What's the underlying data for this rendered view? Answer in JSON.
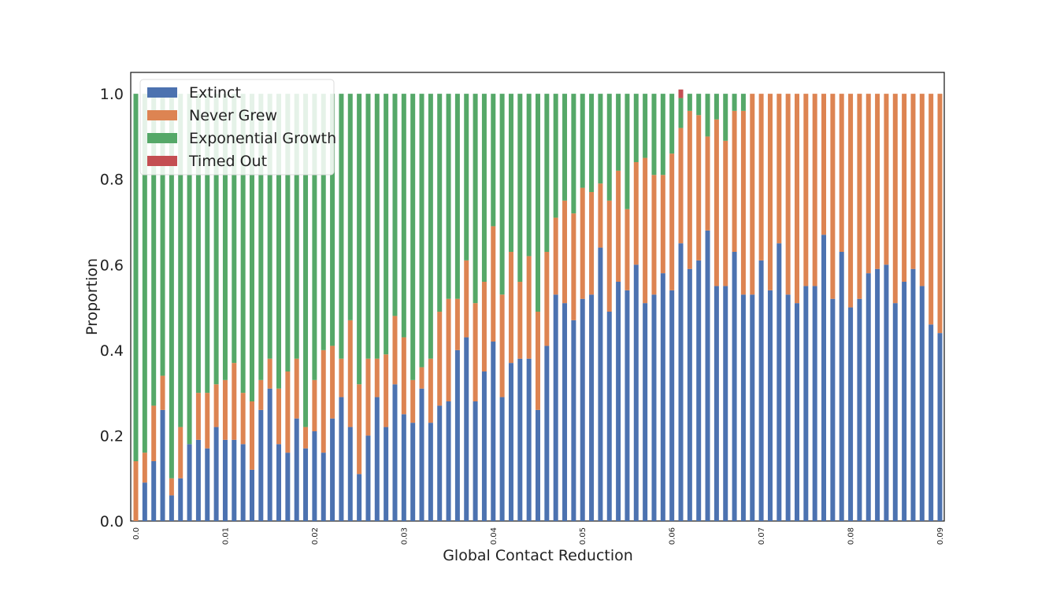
{
  "chart_data": {
    "type": "bar",
    "stacked": true,
    "title": "",
    "xlabel": "Global Contact Reduction",
    "ylabel": "Proportion",
    "ylim": [
      0,
      1.05
    ],
    "xlim": [
      0,
      0.09
    ],
    "grid": false,
    "legend_position": "top-left",
    "y_ticks": [
      "0.0",
      "0.2",
      "0.4",
      "0.6",
      "0.8",
      "1.0"
    ],
    "x_ticks": [
      "0.0",
      "0.01",
      "0.02",
      "0.03",
      "0.04",
      "0.05",
      "0.06",
      "0.07",
      "0.08",
      "0.09"
    ],
    "x_tick_values": [
      0,
      0.01,
      0.02,
      0.03,
      0.04,
      0.05,
      0.06,
      0.07,
      0.08,
      0.09
    ],
    "x": [
      0.0,
      0.001,
      0.002,
      0.003,
      0.004,
      0.005,
      0.006,
      0.007,
      0.008,
      0.009,
      0.01,
      0.011,
      0.012,
      0.013,
      0.014,
      0.015,
      0.016,
      0.017,
      0.018,
      0.019,
      0.02,
      0.021,
      0.022,
      0.023,
      0.024,
      0.025,
      0.026,
      0.027,
      0.028,
      0.029,
      0.03,
      0.031,
      0.032,
      0.033,
      0.034,
      0.035,
      0.036,
      0.037,
      0.038,
      0.039,
      0.04,
      0.041,
      0.042,
      0.043,
      0.044,
      0.045,
      0.046,
      0.047,
      0.048,
      0.049,
      0.05,
      0.051,
      0.052,
      0.053,
      0.054,
      0.055,
      0.056,
      0.057,
      0.058,
      0.059,
      0.06,
      0.061,
      0.062,
      0.063,
      0.064,
      0.065,
      0.066,
      0.067,
      0.068,
      0.069,
      0.07,
      0.071,
      0.072,
      0.073,
      0.074,
      0.075,
      0.076,
      0.077,
      0.078,
      0.079,
      0.08,
      0.081,
      0.082,
      0.083,
      0.084,
      0.085,
      0.086,
      0.087,
      0.088,
      0.089,
      0.09
    ],
    "series": [
      {
        "name": "Extinct",
        "color": "#4c72b0",
        "values": [
          0.0,
          0.09,
          0.14,
          0.26,
          0.06,
          0.1,
          0.18,
          0.19,
          0.17,
          0.22,
          0.19,
          0.19,
          0.18,
          0.12,
          0.26,
          0.31,
          0.18,
          0.16,
          0.24,
          0.17,
          0.21,
          0.16,
          0.24,
          0.29,
          0.22,
          0.11,
          0.2,
          0.29,
          0.22,
          0.32,
          0.25,
          0.23,
          0.31,
          0.23,
          0.27,
          0.28,
          0.4,
          0.43,
          0.28,
          0.35,
          0.42,
          0.29,
          0.37,
          0.38,
          0.38,
          0.26,
          0.41,
          0.53,
          0.51,
          0.47,
          0.52,
          0.53,
          0.64,
          0.49,
          0.56,
          0.54,
          0.6,
          0.51,
          0.53,
          0.58,
          0.54,
          0.65,
          0.59,
          0.61,
          0.68,
          0.55,
          0.55,
          0.63,
          0.53,
          0.53,
          0.61,
          0.54,
          0.65,
          0.53,
          0.51,
          0.55,
          0.55,
          0.67,
          0.52,
          0.63,
          0.5,
          0.52,
          0.58,
          0.59,
          0.6,
          0.51,
          0.56,
          0.59,
          0.55,
          0.46,
          0.44
        ]
      },
      {
        "name": "Never Grew",
        "color": "#dd8452",
        "values": [
          0.14,
          0.07,
          0.13,
          0.08,
          0.04,
          0.12,
          0.0,
          0.11,
          0.13,
          0.1,
          0.14,
          0.18,
          0.12,
          0.16,
          0.07,
          0.07,
          0.13,
          0.19,
          0.14,
          0.05,
          0.12,
          0.24,
          0.17,
          0.09,
          0.25,
          0.21,
          0.18,
          0.09,
          0.17,
          0.16,
          0.18,
          0.1,
          0.05,
          0.15,
          0.22,
          0.24,
          0.12,
          0.18,
          0.23,
          0.21,
          0.27,
          0.24,
          0.26,
          0.18,
          0.24,
          0.23,
          0.22,
          0.18,
          0.24,
          0.25,
          0.26,
          0.24,
          0.15,
          0.26,
          0.26,
          0.19,
          0.24,
          0.34,
          0.28,
          0.23,
          0.32,
          0.27,
          0.37,
          0.34,
          0.22,
          0.39,
          0.34,
          0.33,
          0.43,
          0.47,
          0.39,
          0.46,
          0.35,
          0.47,
          0.49,
          0.45,
          0.45,
          0.33,
          0.48,
          0.37,
          0.5,
          0.48,
          0.42,
          0.41,
          0.4,
          0.49,
          0.44,
          0.41,
          0.45,
          0.54,
          0.56
        ]
      },
      {
        "name": "Exponential Growth",
        "color": "#55a868",
        "values": [
          0.86,
          0.84,
          0.73,
          0.66,
          0.9,
          0.78,
          0.82,
          0.7,
          0.7,
          0.68,
          0.67,
          0.63,
          0.7,
          0.72,
          0.67,
          0.62,
          0.69,
          0.65,
          0.62,
          0.78,
          0.67,
          0.6,
          0.59,
          0.62,
          0.53,
          0.68,
          0.62,
          0.62,
          0.61,
          0.52,
          0.57,
          0.67,
          0.64,
          0.62,
          0.51,
          0.48,
          0.48,
          0.39,
          0.49,
          0.44,
          0.31,
          0.47,
          0.37,
          0.44,
          0.38,
          0.51,
          0.37,
          0.29,
          0.25,
          0.28,
          0.22,
          0.23,
          0.21,
          0.25,
          0.18,
          0.27,
          0.16,
          0.15,
          0.19,
          0.19,
          0.14,
          0.07,
          0.04,
          0.05,
          0.1,
          0.06,
          0.11,
          0.04,
          0.04,
          0.0,
          0.0,
          0.0,
          0.0,
          0.0,
          0.0,
          0.0,
          0.0,
          0.0,
          0.0,
          0.0,
          0.0,
          0.0,
          0.0,
          0.0,
          0.0,
          0.0,
          0.0,
          0.0,
          0.0,
          0.0,
          0.0
        ]
      },
      {
        "name": "Timed Out",
        "color": "#c44e52",
        "values": [
          0,
          0,
          0,
          0,
          0,
          0,
          0,
          0,
          0,
          0,
          0,
          0,
          0,
          0,
          0,
          0,
          0,
          0,
          0,
          0,
          0,
          0,
          0,
          0,
          0,
          0,
          0,
          0,
          0,
          0,
          0,
          0,
          0,
          0,
          0,
          0,
          0,
          0,
          0,
          0,
          0,
          0,
          0,
          0,
          0,
          0,
          0,
          0,
          0,
          0,
          0,
          0,
          0,
          0,
          0,
          0,
          0,
          0,
          0,
          0,
          0,
          0.02,
          0,
          0,
          0,
          0,
          0,
          0,
          0,
          0,
          0,
          0,
          0,
          0,
          0,
          0,
          0,
          0,
          0,
          0,
          0,
          0,
          0,
          0,
          0,
          0,
          0,
          0,
          0,
          0,
          0
        ]
      }
    ]
  }
}
